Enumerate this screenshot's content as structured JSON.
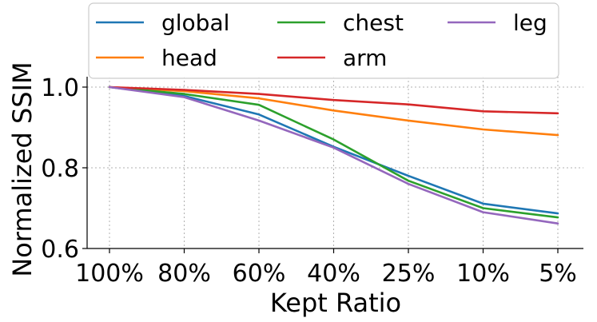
{
  "chart_data": {
    "type": "line",
    "xlabel": "Kept Ratio",
    "ylabel": "Normalized SSIM",
    "categories": [
      "100%",
      "80%",
      "60%",
      "40%",
      "25%",
      "10%",
      "5%"
    ],
    "ylim": [
      0.6,
      1.0
    ],
    "yticks": [
      "0.6",
      "0.8",
      "1.0"
    ],
    "ytick_values": [
      0.6,
      0.8,
      1.0
    ],
    "grid": true,
    "legend_position": "top-center",
    "series": [
      {
        "name": "global",
        "color": "#1f77b4",
        "values": [
          1.0,
          0.978,
          0.932,
          0.852,
          0.78,
          0.711,
          0.687
        ]
      },
      {
        "name": "head",
        "color": "#ff7f0e",
        "values": [
          1.0,
          0.99,
          0.972,
          0.942,
          0.917,
          0.895,
          0.881
        ]
      },
      {
        "name": "chest",
        "color": "#2ca02c",
        "values": [
          1.0,
          0.983,
          0.956,
          0.87,
          0.768,
          0.7,
          0.677
        ]
      },
      {
        "name": "arm",
        "color": "#d62728",
        "values": [
          1.0,
          0.993,
          0.983,
          0.968,
          0.957,
          0.94,
          0.935
        ]
      },
      {
        "name": "leg",
        "color": "#9467bd",
        "values": [
          1.0,
          0.975,
          0.917,
          0.85,
          0.76,
          0.69,
          0.662
        ]
      }
    ]
  }
}
